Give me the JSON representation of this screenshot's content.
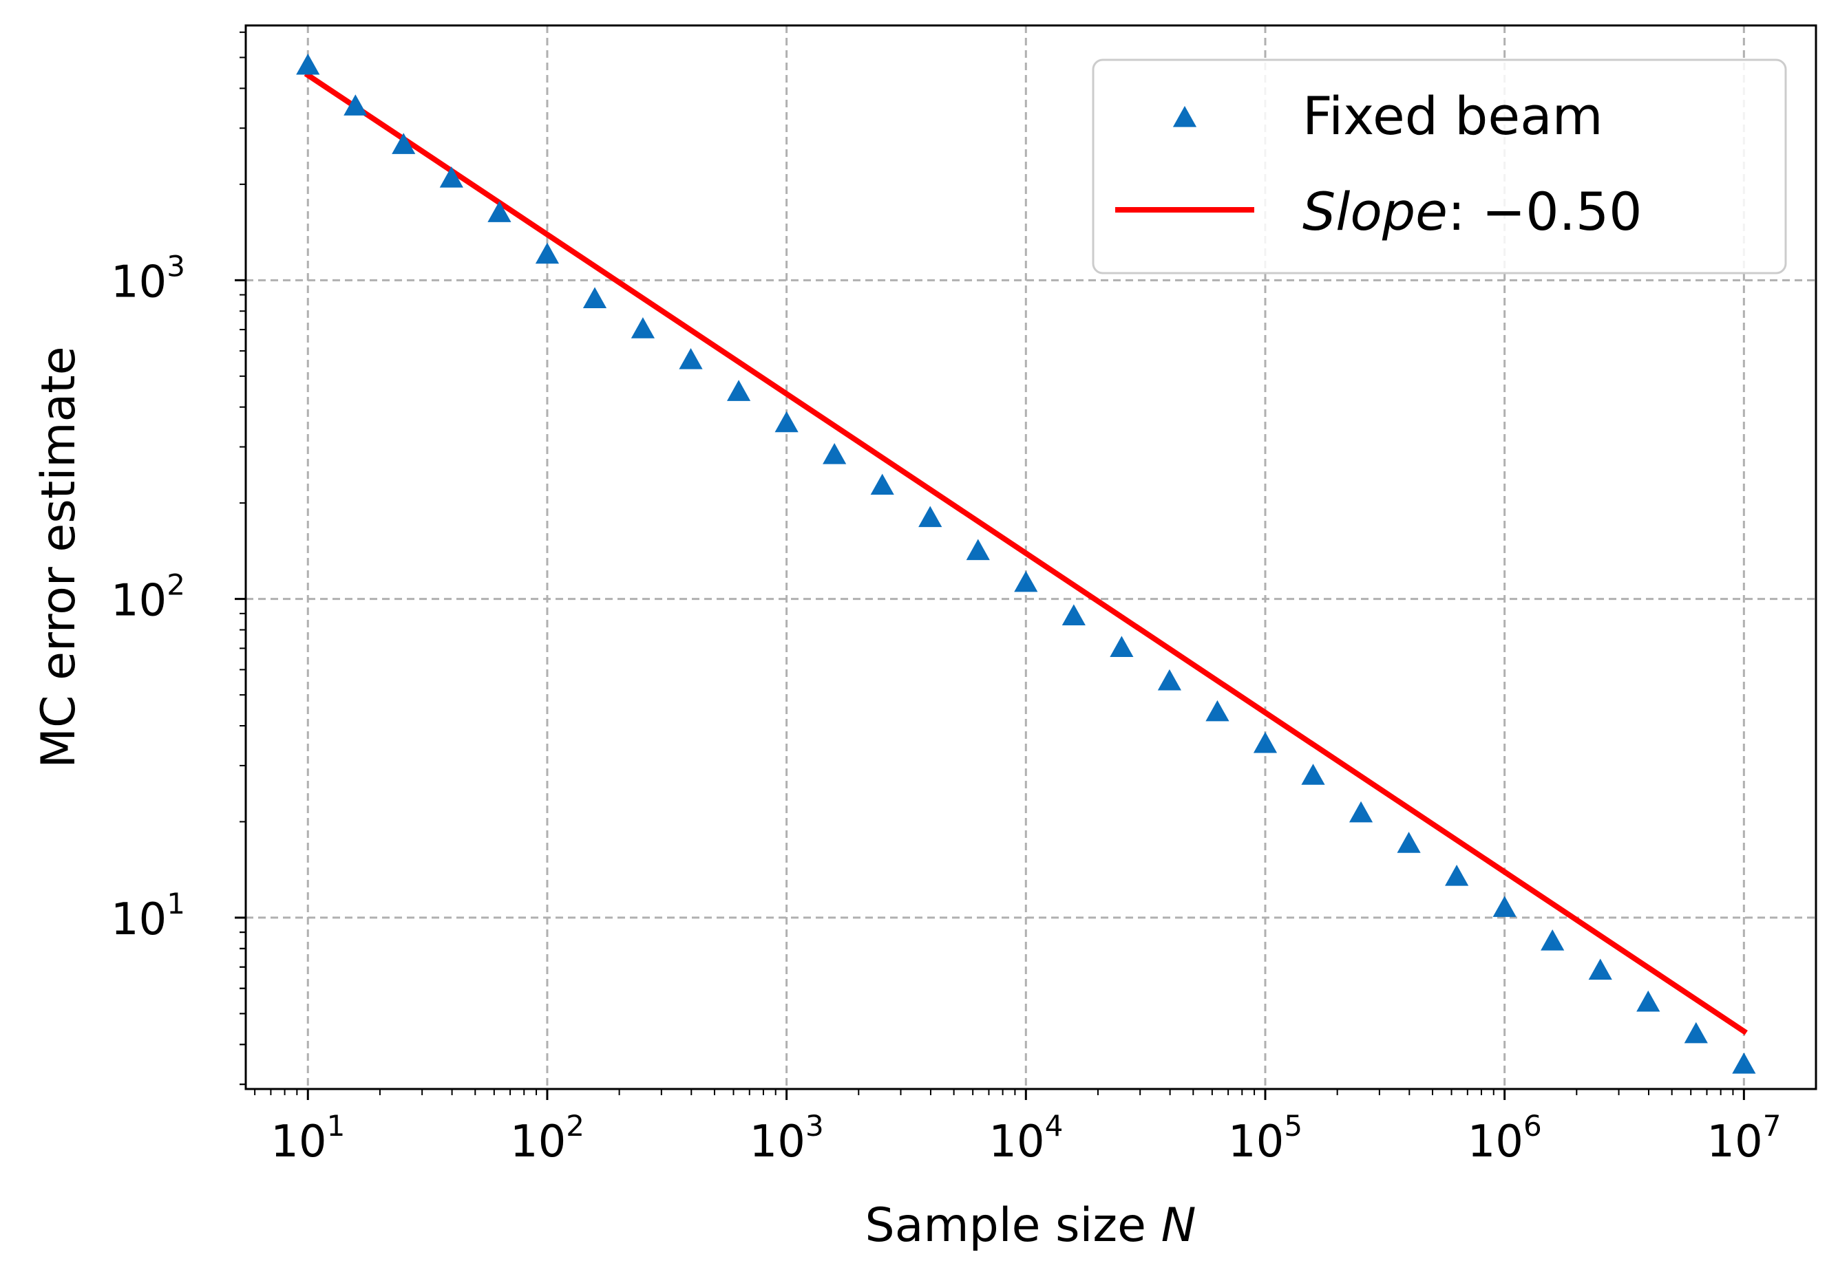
{
  "chart_data": {
    "type": "scatter",
    "xlabel_text": "Sample size ",
    "xlabel_var": "N",
    "ylabel": "MC error estimate",
    "xscale": "log",
    "yscale": "log",
    "xlim": [
      5.5,
      20000000
    ],
    "ylim": [
      2.9,
      6300
    ],
    "grid": true,
    "legend_position": "top-right",
    "x_ticks": [
      {
        "base": "10",
        "exp": "1",
        "value": 10
      },
      {
        "base": "10",
        "exp": "2",
        "value": 100
      },
      {
        "base": "10",
        "exp": "3",
        "value": 1000
      },
      {
        "base": "10",
        "exp": "4",
        "value": 10000
      },
      {
        "base": "10",
        "exp": "5",
        "value": 100000
      },
      {
        "base": "10",
        "exp": "6",
        "value": 1000000
      },
      {
        "base": "10",
        "exp": "7",
        "value": 10000000
      }
    ],
    "y_ticks": [
      {
        "base": "10",
        "exp": "1",
        "value": 10
      },
      {
        "base": "10",
        "exp": "2",
        "value": 100
      },
      {
        "base": "10",
        "exp": "3",
        "value": 1000
      }
    ],
    "series": [
      {
        "name": "Fixed beam",
        "kind": "scatter",
        "marker": "triangle-up",
        "color": "#0a6ebd",
        "x": [
          10,
          15.8,
          25.1,
          39.8,
          63.1,
          100,
          158,
          251,
          398,
          631,
          1000,
          1585,
          2512,
          3981,
          6310,
          10000,
          15849,
          25119,
          39811,
          63096,
          100000,
          158489,
          251189,
          398107,
          630957,
          1000000,
          1584893,
          2511886,
          3981072,
          6309573,
          10000000
        ],
        "y": [
          4700,
          3500,
          2650,
          2080,
          1620,
          1200,
          870,
          700,
          560,
          445,
          355,
          282,
          226,
          179,
          141,
          112,
          88,
          70,
          55,
          44,
          35,
          27.8,
          21.2,
          17.0,
          13.4,
          10.7,
          8.4,
          6.8,
          5.4,
          4.3,
          3.45
        ]
      },
      {
        "name_prefix": "Slope",
        "name_suffix": ": −0.50",
        "kind": "line",
        "color": "#ff0000",
        "x": [
          10,
          10000000
        ],
        "y": [
          4400,
          4.4
        ]
      }
    ]
  }
}
